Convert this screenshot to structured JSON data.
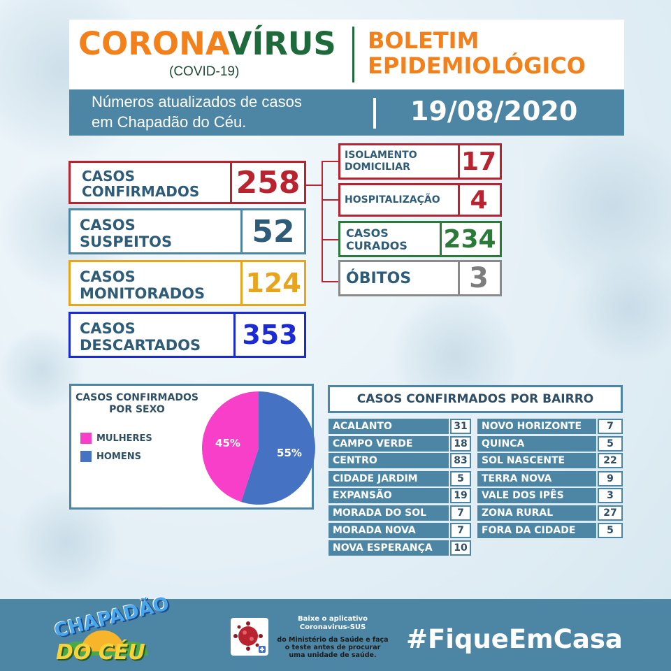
{
  "colors": {
    "accent_blue": "#4d86a4",
    "orange": "#f2811c",
    "green": "#1f6a3a",
    "red": "#b8232f",
    "yellow": "#e8a41c",
    "navy": "#1a2bd6",
    "gray": "#7d7d7d",
    "pink": "#f73fc9",
    "blue_slice": "#4672c4"
  },
  "header": {
    "title_part1": "CORONA",
    "title_part2": "VÍRUS",
    "covid": "(COVID-19)",
    "boletim_line1": "BOLETIM",
    "boletim_line2": "EPIDEMIOLÓGICO",
    "subtitle_line1": "Números atualizados de casos",
    "subtitle_line2": "em Chapadão do Céu.",
    "date": "19/08/2020"
  },
  "stats": {
    "confirmados": {
      "line1": "CASOS",
      "line2": "CONFIRMADOS",
      "value": "258"
    },
    "suspeitos": {
      "line1": "CASOS",
      "line2": "SUSPEITOS",
      "value": "52"
    },
    "monitorados": {
      "line1": "CASOS",
      "line2": "MONITORADOS",
      "value": "124"
    },
    "descartados": {
      "line1": "CASOS",
      "line2": "DESCARTADOS",
      "value": "353"
    },
    "isolamento": {
      "line1": "ISOLAMENTO",
      "line2": "DOMICILIAR",
      "value": "17"
    },
    "hospitalizacao": {
      "line1": "HOSPITALIZAÇÃO",
      "value": "4"
    },
    "curados": {
      "line1": "CASOS",
      "line2": "CURADOS",
      "value": "234"
    },
    "obitos": {
      "line1": "ÓBITOS",
      "value": "3"
    }
  },
  "sexo": {
    "title_line1": "CASOS CONFIRMADOS",
    "title_line2": "POR SEXO",
    "legend": [
      {
        "label": "MULHERES",
        "color": "#f73fc9"
      },
      {
        "label": "HOMENS",
        "color": "#4672c4"
      }
    ]
  },
  "chart_data": {
    "type": "pie",
    "title": "CASOS CONFIRMADOS POR SEXO",
    "categories": [
      "MULHERES",
      "HOMENS"
    ],
    "values": [
      45,
      55
    ],
    "labels": [
      "45%",
      "55%"
    ],
    "colors": [
      "#f73fc9",
      "#4672c4"
    ],
    "legend": "left"
  },
  "bairro": {
    "title": "CASOS CONFIRMADOS POR BAIRRO",
    "left": [
      {
        "name": "ACALANTO",
        "value": "31"
      },
      {
        "name": "CAMPO VERDE",
        "value": "18"
      },
      {
        "name": "CENTRO",
        "value": "83"
      },
      {
        "name": "CIDADE JARDIM",
        "value": "5"
      },
      {
        "name": "EXPANSÃO",
        "value": "19"
      },
      {
        "name": "MORADA DO SOL",
        "value": "7"
      },
      {
        "name": "MORADA NOVA",
        "value": "7"
      },
      {
        "name": "NOVA ESPERANÇA",
        "value": "10"
      }
    ],
    "right": [
      {
        "name": "NOVO HORIZONTE",
        "value": "7"
      },
      {
        "name": "QUINCA",
        "value": "5"
      },
      {
        "name": "SOL NASCENTE",
        "value": "22"
      },
      {
        "name": "TERRA NOVA",
        "value": "9"
      },
      {
        "name": "VALE DOS IPÊS",
        "value": "3"
      },
      {
        "name": "ZONA RURAL",
        "value": "27"
      },
      {
        "name": "FORA DA CIDADE",
        "value": "5"
      }
    ]
  },
  "footer": {
    "logo_line1": "CHAPADÃO",
    "logo_line2": "DO CÉU",
    "app_line1": "Baixe o aplicativo",
    "app_line2": "Coronavirus-SUS",
    "app_line3": "do Ministério da Saúde e faça",
    "app_line4": "o teste antes de procurar",
    "app_line5": "uma unidade de saúde.",
    "hashtag": "#FiqueEmCasa"
  }
}
